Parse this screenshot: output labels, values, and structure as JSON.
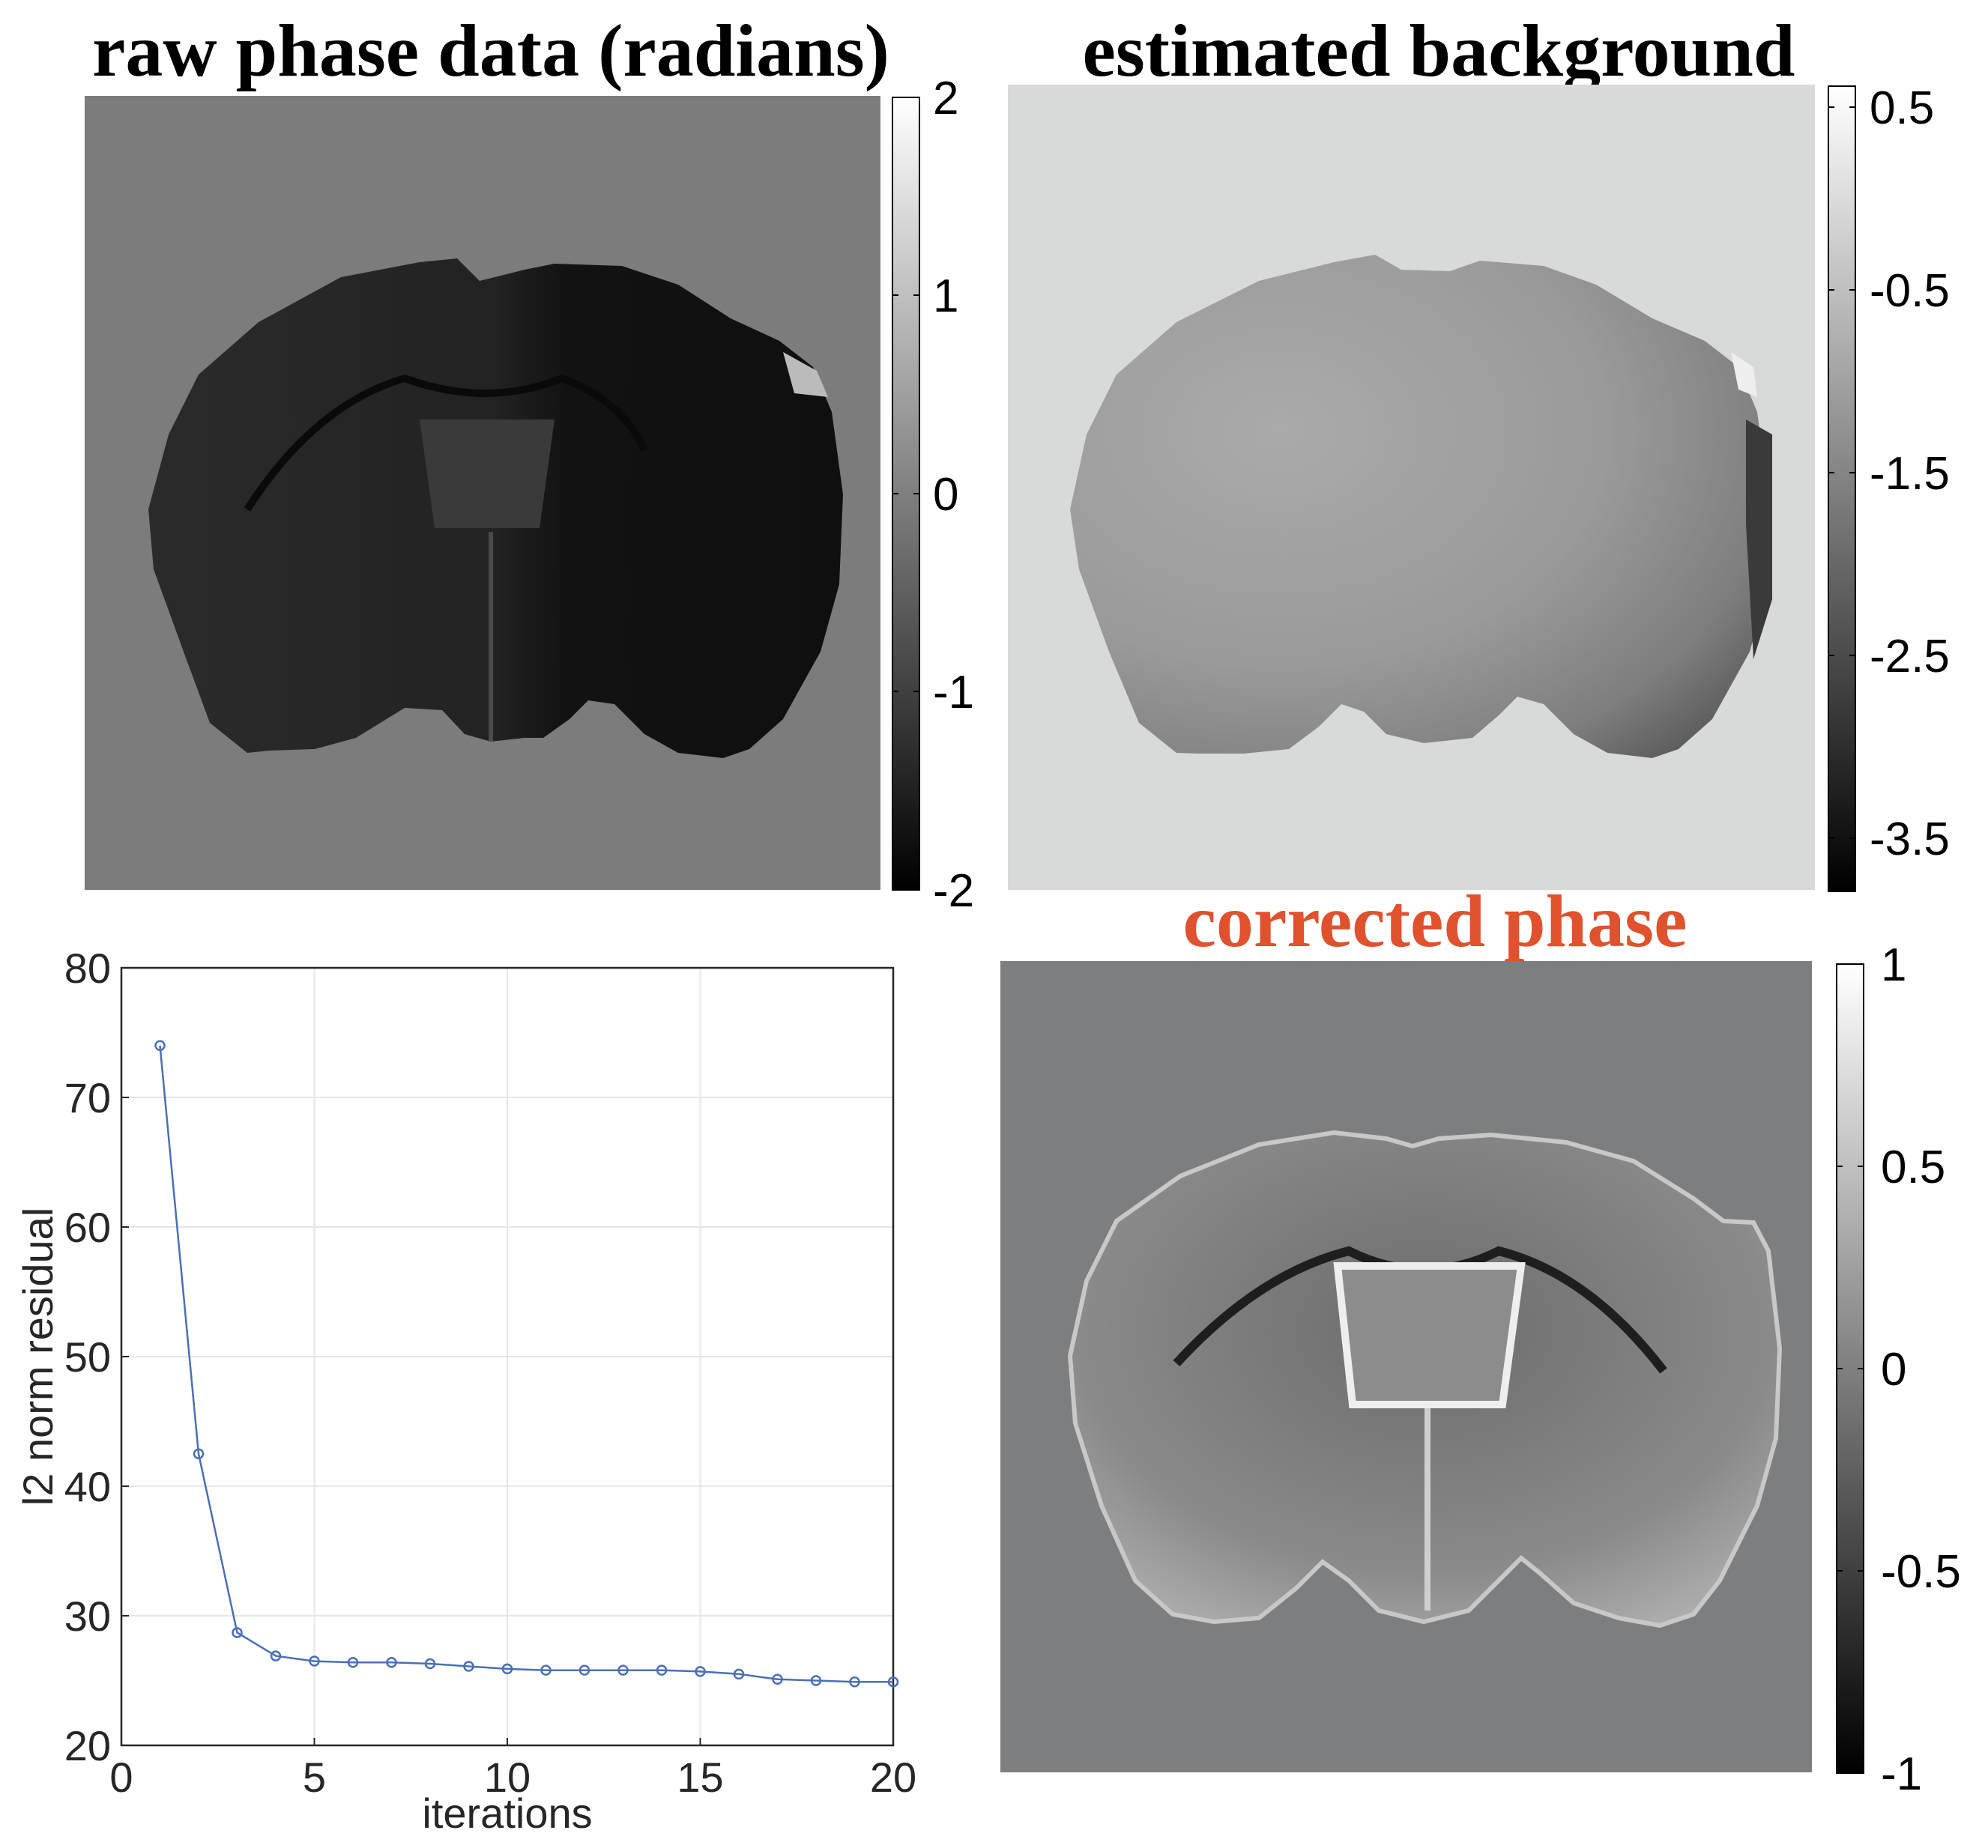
{
  "panels": {
    "raw": {
      "title": "raw phase data (radians)",
      "colorbar_ticks": [
        "2",
        "1",
        "0",
        "-1",
        "-2"
      ],
      "colorbar_range": [
        -2,
        2
      ],
      "background_color": "#7c7c7c"
    },
    "background": {
      "title": "estimated background",
      "colorbar_ticks": [
        "0.5",
        "-0.5",
        "-1.5",
        "-2.5",
        "-3.5"
      ],
      "colorbar_range": [
        -3.8,
        0.6
      ],
      "background_color": "#d8d9d9"
    },
    "corrected": {
      "title": "corrected phase",
      "title_color": "#e0512d",
      "colorbar_ticks": [
        "1",
        "0.5",
        "0",
        "-0.5",
        "-1"
      ],
      "colorbar_range": [
        -1,
        1
      ],
      "background_color": "#7d7e7f"
    }
  },
  "chart_data": {
    "type": "line",
    "xlabel": "iterations",
    "ylabel": "l2 norm residual",
    "xlim": [
      0,
      20
    ],
    "ylim": [
      20,
      80
    ],
    "xticks": [
      "0",
      "5",
      "10",
      "15",
      "20"
    ],
    "yticks": [
      "20",
      "30",
      "40",
      "50",
      "60",
      "70",
      "80"
    ],
    "grid": true,
    "marker": "circle",
    "line_color": "#4a6fb8",
    "series": [
      {
        "x": [
          1,
          2,
          3,
          4,
          5,
          6,
          7,
          8,
          9,
          10,
          11,
          12,
          13,
          14,
          15,
          16,
          17,
          18,
          19,
          20
        ],
        "values": [
          74.0,
          42.5,
          28.7,
          26.9,
          26.5,
          26.4,
          26.4,
          26.3,
          26.1,
          25.9,
          25.8,
          25.8,
          25.8,
          25.8,
          25.7,
          25.5,
          25.1,
          25.0,
          24.9,
          24.9
        ]
      }
    ]
  }
}
